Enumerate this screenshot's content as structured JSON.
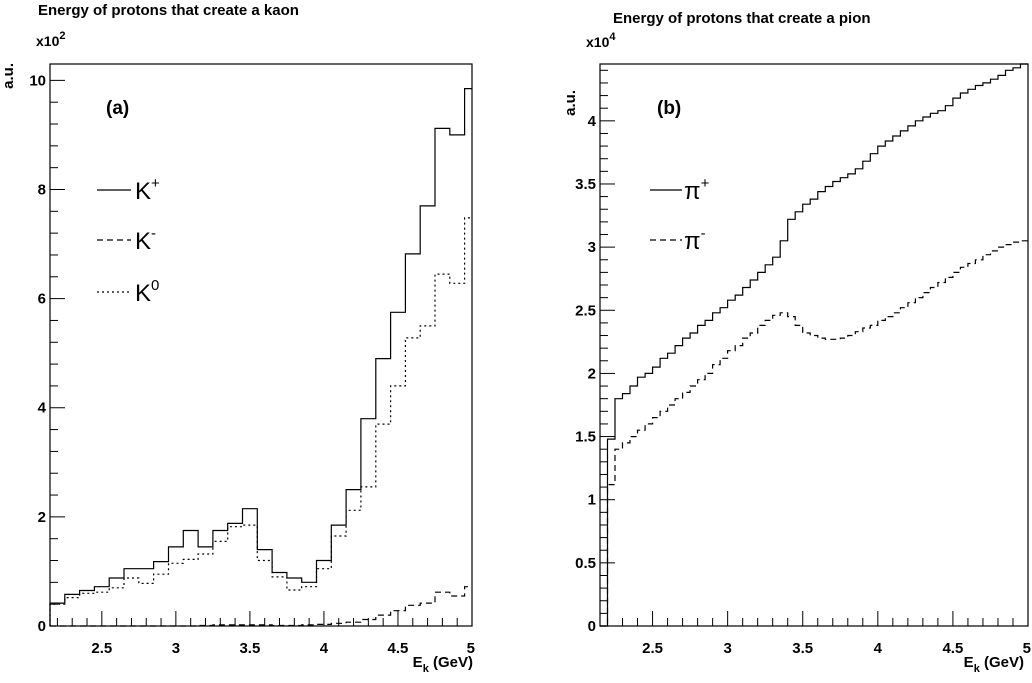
{
  "chart_data": [
    {
      "type": "histogram",
      "title": "Energy of protons that create a kaon",
      "panel_label": "(a)",
      "xlabel": {
        "main": "E",
        "sub": "k",
        "tail": " (GeV)"
      },
      "ylabel": "a.u.",
      "y_multiplier": {
        "base": "x10",
        "exp": "2"
      },
      "xlim": [
        2.15,
        5.0
      ],
      "ylim": [
        0,
        10.3
      ],
      "x_ticks": [
        2.5,
        3,
        3.5,
        4,
        4.5,
        5
      ],
      "x_tick_labels": [
        "2.5",
        "3",
        "3.5",
        "4",
        "4.5",
        "5"
      ],
      "y_ticks": [
        0,
        2,
        4,
        6,
        8,
        10
      ],
      "y_tick_labels": [
        "0",
        "2",
        "4",
        "6",
        "8",
        "10"
      ],
      "bin_edges": [
        2.15,
        2.25,
        2.35,
        2.45,
        2.55,
        2.65,
        2.75,
        2.85,
        2.95,
        3.05,
        3.15,
        3.25,
        3.35,
        3.45,
        3.55,
        3.65,
        3.75,
        3.85,
        3.95,
        4.05,
        4.15,
        4.25,
        4.35,
        4.45,
        4.55,
        4.65,
        4.75,
        4.85,
        4.95,
        5.0
      ],
      "series": [
        {
          "name": "K",
          "sup": "+",
          "style": "solid",
          "values": [
            0.42,
            0.58,
            0.65,
            0.72,
            0.88,
            1.05,
            1.05,
            1.18,
            1.45,
            1.75,
            1.45,
            1.75,
            1.88,
            2.15,
            1.4,
            0.98,
            0.88,
            0.8,
            1.2,
            1.85,
            2.5,
            3.8,
            4.9,
            5.75,
            6.82,
            7.7,
            9.12,
            9.0,
            9.85
          ]
        },
        {
          "name": "K",
          "sup": "-",
          "style": "dashed",
          "values": [
            0,
            0,
            0,
            0,
            0,
            0,
            0,
            0,
            0,
            0,
            0.01,
            0.02,
            0.02,
            0.02,
            0.02,
            0.01,
            0.01,
            0.02,
            0.03,
            0.05,
            0.07,
            0.12,
            0.2,
            0.28,
            0.38,
            0.42,
            0.62,
            0.55,
            0.72
          ]
        },
        {
          "name": "K",
          "sup": "0",
          "style": "dotted",
          "values": [
            0.4,
            0.52,
            0.6,
            0.62,
            0.7,
            0.88,
            0.78,
            0.95,
            1.15,
            1.22,
            1.32,
            1.55,
            1.82,
            1.85,
            1.2,
            0.9,
            0.66,
            0.72,
            1.05,
            1.65,
            2.12,
            2.55,
            3.7,
            4.4,
            5.28,
            5.5,
            6.45,
            6.28,
            7.48
          ]
        }
      ]
    },
    {
      "type": "histogram",
      "title": "Energy of protons that create a pion",
      "panel_label": "(b)",
      "xlabel": {
        "main": "E",
        "sub": "k",
        "tail": " (GeV)"
      },
      "ylabel": "a.u.",
      "y_multiplier": {
        "base": "x10",
        "exp": "4"
      },
      "xlim": [
        2.15,
        5.0
      ],
      "ylim": [
        0,
        4.45
      ],
      "x_ticks": [
        2.5,
        3,
        3.5,
        4,
        4.5,
        5
      ],
      "x_tick_labels": [
        "2.5",
        "3",
        "3.5",
        "4",
        "4.5",
        "5"
      ],
      "y_ticks": [
        0,
        0.5,
        1,
        1.5,
        2,
        2.5,
        3,
        3.5,
        4
      ],
      "y_tick_labels": [
        "0",
        "0.5",
        "1",
        "1.5",
        "2",
        "2.5",
        "3",
        "3.5",
        "4"
      ],
      "bin_edges": [
        2.15,
        2.2,
        2.25,
        2.3,
        2.35,
        2.4,
        2.45,
        2.5,
        2.55,
        2.6,
        2.65,
        2.7,
        2.75,
        2.8,
        2.85,
        2.9,
        2.95,
        3.0,
        3.05,
        3.1,
        3.15,
        3.2,
        3.25,
        3.3,
        3.35,
        3.4,
        3.45,
        3.5,
        3.55,
        3.6,
        3.65,
        3.7,
        3.75,
        3.8,
        3.85,
        3.9,
        3.95,
        4.0,
        4.05,
        4.1,
        4.15,
        4.2,
        4.25,
        4.3,
        4.35,
        4.4,
        4.45,
        4.5,
        4.55,
        4.6,
        4.65,
        4.7,
        4.75,
        4.8,
        4.85,
        4.9,
        4.95,
        5.0
      ],
      "series": [
        {
          "name": "π",
          "sup": "+",
          "style": "solid",
          "values": [
            0,
            1.48,
            1.8,
            1.84,
            1.9,
            1.97,
            2.0,
            2.05,
            2.12,
            2.16,
            2.22,
            2.28,
            2.32,
            2.38,
            2.42,
            2.48,
            2.52,
            2.58,
            2.62,
            2.68,
            2.74,
            2.8,
            2.86,
            2.92,
            3.05,
            3.22,
            3.28,
            3.34,
            3.38,
            3.44,
            3.48,
            3.52,
            3.55,
            3.58,
            3.62,
            3.68,
            3.74,
            3.8,
            3.84,
            3.88,
            3.92,
            3.96,
            4.0,
            4.03,
            4.06,
            4.08,
            4.12,
            4.18,
            4.22,
            4.25,
            4.28,
            4.3,
            4.33,
            4.36,
            4.4,
            4.42,
            4.45
          ]
        },
        {
          "name": "π",
          "sup": "-",
          "style": "dashed",
          "values": [
            0,
            1.12,
            1.4,
            1.45,
            1.5,
            1.55,
            1.6,
            1.65,
            1.7,
            1.75,
            1.8,
            1.85,
            1.9,
            1.95,
            2.0,
            2.07,
            2.12,
            2.18,
            2.22,
            2.28,
            2.32,
            2.38,
            2.42,
            2.46,
            2.48,
            2.45,
            2.38,
            2.32,
            2.3,
            2.28,
            2.27,
            2.27,
            2.28,
            2.3,
            2.33,
            2.36,
            2.38,
            2.42,
            2.45,
            2.48,
            2.52,
            2.56,
            2.6,
            2.64,
            2.68,
            2.72,
            2.76,
            2.8,
            2.84,
            2.87,
            2.9,
            2.94,
            2.97,
            3.0,
            3.02,
            3.04,
            3.05
          ]
        }
      ]
    }
  ]
}
